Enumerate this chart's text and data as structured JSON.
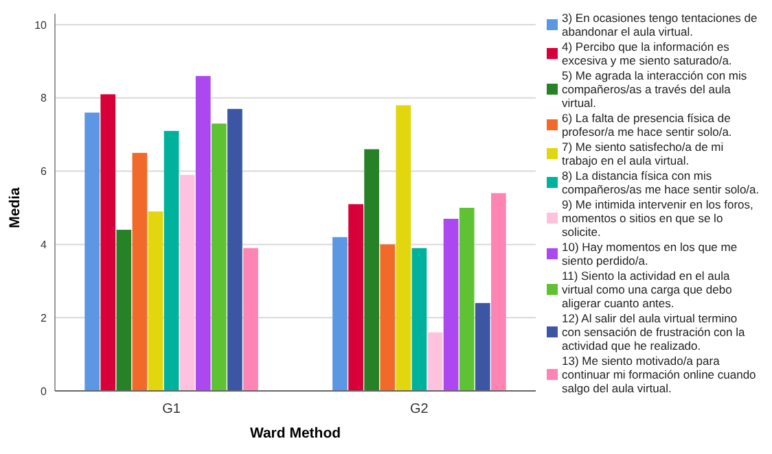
{
  "chart_data": {
    "type": "bar",
    "xlabel": "Ward Method",
    "ylabel": "Media",
    "categories": [
      "G1",
      "G2"
    ],
    "series": [
      {
        "name": "3) En ocasiones tengo tentaciones de abandonar el aula virtual.",
        "color": "#5b97e3",
        "values": [
          7.6,
          4.2
        ]
      },
      {
        "name": "4) Percibo que la información es excesiva y me siento saturado/a.",
        "color": "#d70038",
        "values": [
          8.1,
          5.1
        ]
      },
      {
        "name": "5) Me agrada la interacción con mis compañeros/as a través del aula virtual.",
        "color": "#278227",
        "values": [
          4.4,
          6.6
        ]
      },
      {
        "name": "6) La falta de presencia física de profesor/a me hace sentir solo/a.",
        "color": "#f26a2a",
        "values": [
          6.5,
          4.0
        ]
      },
      {
        "name": "7) Me siento satisfecho/a de mi trabajo en el aula virtual.",
        "color": "#e2d60e",
        "values": [
          4.9,
          7.8
        ]
      },
      {
        "name": "8) La distancia física con mis compañeros/as me hace sentir solo/a.",
        "color": "#00b29b",
        "values": [
          7.1,
          3.9
        ]
      },
      {
        "name": "9) Me intimida intervenir en los foros,  momentos o sitios en que se lo solicite.",
        "color": "#fec2df",
        "values": [
          5.9,
          1.6
        ]
      },
      {
        "name": "10) Hay momentos en los que me siento perdido/a.",
        "color": "#ac48ef",
        "values": [
          8.6,
          4.7
        ]
      },
      {
        "name": "11) Siento la actividad en el aula virtual como una carga que debo aligerar cuanto antes.",
        "color": "#5fc233",
        "values": [
          7.3,
          5.0
        ]
      },
      {
        "name": "12) Al salir del aula virtual termino con sensación de frustración con la actividad que he realizado.",
        "color": "#3c56a4",
        "values": [
          7.7,
          2.4
        ]
      },
      {
        "name": "13) Me siento motivado/a para continuar mi formación online cuando salgo del aula virtual.",
        "color": "#fe84b4",
        "values": [
          3.9,
          5.4
        ]
      }
    ],
    "ylim": [
      0,
      10
    ],
    "yticks": [
      0,
      2,
      4,
      6,
      8,
      10
    ],
    "grid": "y",
    "legend": "right"
  }
}
